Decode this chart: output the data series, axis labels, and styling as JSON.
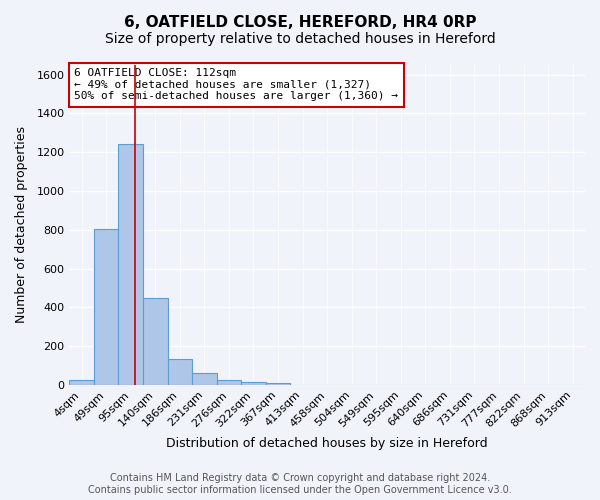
{
  "title": "6, OATFIELD CLOSE, HEREFORD, HR4 0RP",
  "subtitle": "Size of property relative to detached houses in Hereford",
  "xlabel": "Distribution of detached houses by size in Hereford",
  "ylabel": "Number of detached properties",
  "footer_line1": "Contains HM Land Registry data © Crown copyright and database right 2024.",
  "footer_line2": "Contains public sector information licensed under the Open Government Licence v3.0.",
  "bin_labels": [
    "4sqm",
    "49sqm",
    "95sqm",
    "140sqm",
    "186sqm",
    "231sqm",
    "276sqm",
    "322sqm",
    "367sqm",
    "413sqm",
    "458sqm",
    "504sqm",
    "549sqm",
    "595sqm",
    "640sqm",
    "686sqm",
    "731sqm",
    "777sqm",
    "822sqm",
    "868sqm",
    "913sqm"
  ],
  "bar_values": [
    25,
    805,
    1240,
    450,
    135,
    60,
    25,
    15,
    12,
    0,
    0,
    0,
    0,
    0,
    0,
    0,
    0,
    0,
    0,
    0,
    0
  ],
  "bar_color": "#aec6e8",
  "bar_edge_color": "#5a9fd4",
  "red_line_x": 2.17,
  "annotation_text": "6 OATFIELD CLOSE: 112sqm\n← 49% of detached houses are smaller (1,327)\n50% of semi-detached houses are larger (1,360) →",
  "annotation_box_color": "#ffffff",
  "annotation_box_edge": "#cc0000",
  "ylim": [
    0,
    1650
  ],
  "yticks": [
    0,
    200,
    400,
    600,
    800,
    1000,
    1200,
    1400,
    1600
  ],
  "background_color": "#f0f4fa",
  "grid_color": "#ffffff",
  "title_fontsize": 11,
  "subtitle_fontsize": 10,
  "axis_label_fontsize": 9,
  "tick_fontsize": 8,
  "annotation_fontsize": 8,
  "footer_fontsize": 7
}
